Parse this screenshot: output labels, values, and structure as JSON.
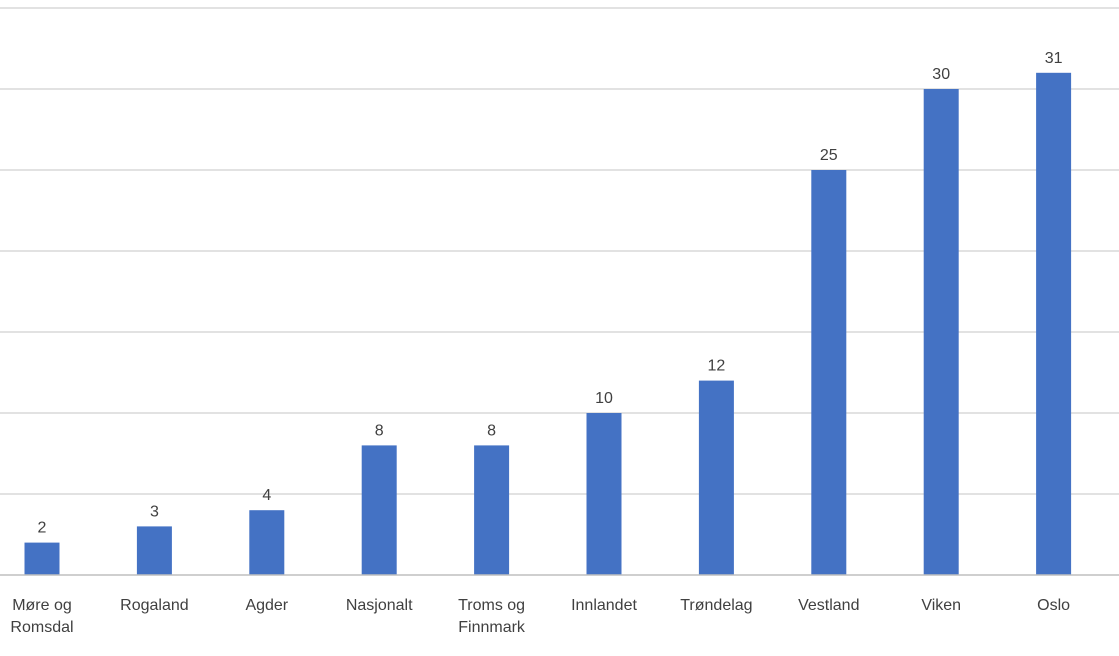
{
  "chart_data": {
    "type": "bar",
    "categories": [
      [
        "Møre og",
        "Romsdal"
      ],
      [
        "Rogaland"
      ],
      [
        "Agder"
      ],
      [
        "Nasjonalt"
      ],
      [
        "Troms og",
        "Finnmark"
      ],
      [
        "Innlandet"
      ],
      [
        "Trøndelag"
      ],
      [
        "Vestland"
      ],
      [
        "Viken"
      ],
      [
        "Oslo"
      ]
    ],
    "values": [
      2,
      3,
      4,
      8,
      8,
      10,
      12,
      25,
      30,
      31
    ],
    "ylim": [
      0,
      35
    ],
    "grid": true,
    "bar_color": "#4472c4",
    "grid_color": "#d9d9d9"
  }
}
